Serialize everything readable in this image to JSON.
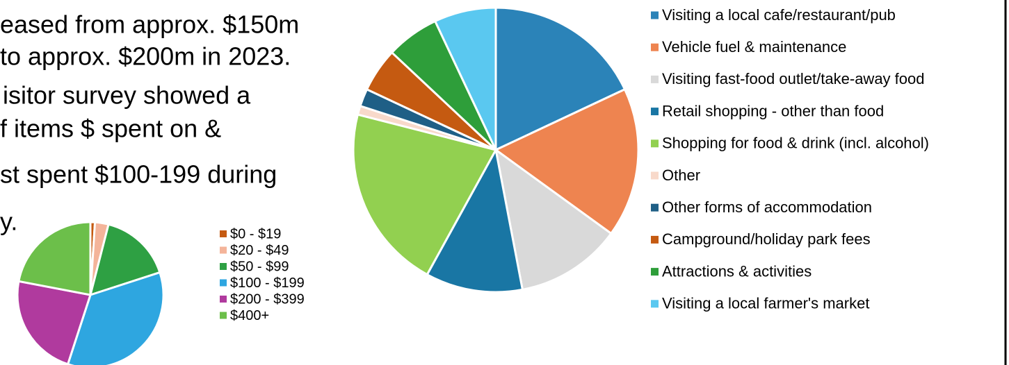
{
  "text_lines": [
    "eased from approx. $150m",
    "to approx. $200m in 2023.",
    "isitor survey showed a",
    "f items $ spent on &",
    "st spent $100-199 during",
    "y."
  ],
  "chart_data": [
    {
      "type": "pie",
      "categories": [
        "Visiting a local cafe/restaurant/pub",
        "Vehicle fuel & maintenance",
        "Visiting fast-food outlet/take-away food",
        "Retail shopping - other than food",
        "Shopping for food & drink (incl. alcohol)",
        "Other",
        "Other forms of accommodation",
        "Campground/holiday park fees",
        "Attractions & activities",
        "Visiting a local farmer's market"
      ],
      "values": [
        18,
        17,
        12,
        11,
        21,
        1,
        2,
        5,
        6,
        7
      ],
      "colors": [
        "#2b83b8",
        "#ee8450",
        "#d9d9d9",
        "#1976a4",
        "#92d050",
        "#f8d9ca",
        "#1f5f86",
        "#c55a11",
        "#2e9e3a",
        "#5ac8f0"
      ]
    },
    {
      "type": "pie",
      "categories": [
        "$0 - $19",
        "$20 - $49",
        "$50 - $99",
        "$100 - $199",
        "$200 - $399",
        "$400+"
      ],
      "values": [
        1,
        3,
        16,
        35,
        23,
        22
      ],
      "colors": [
        "#c55a11",
        "#f4b49a",
        "#2ea043",
        "#2ea6e0",
        "#b03a9e",
        "#6cbf4a"
      ]
    }
  ]
}
